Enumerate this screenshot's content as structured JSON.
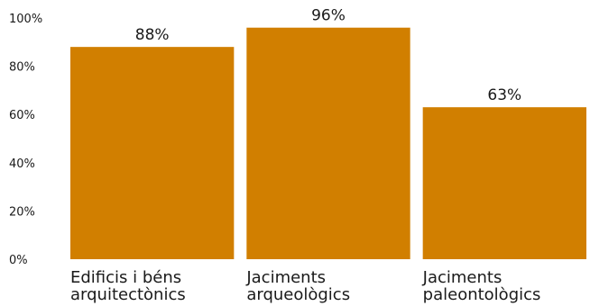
{
  "chart_data": {
    "type": "bar",
    "title": "",
    "xlabel": "",
    "ylabel": "",
    "categories": [
      [
        "Edificis i béns",
        "arquitectònics"
      ],
      [
        "Jaciments",
        "arqueològics"
      ],
      [
        "Jaciments",
        "paleontològics"
      ]
    ],
    "values": [
      88,
      96,
      63
    ],
    "value_labels": [
      "88%",
      "96%",
      "63%"
    ],
    "ylim": [
      0,
      100
    ],
    "y_ticks": [
      0,
      20,
      40,
      60,
      80,
      100
    ],
    "y_tick_labels": [
      "0%",
      "20%",
      "40%",
      "60%",
      "80%",
      "100%"
    ],
    "grid": false,
    "legend": "none",
    "bar_color": "#d17f00",
    "text_color": "#1a1a1a"
  }
}
